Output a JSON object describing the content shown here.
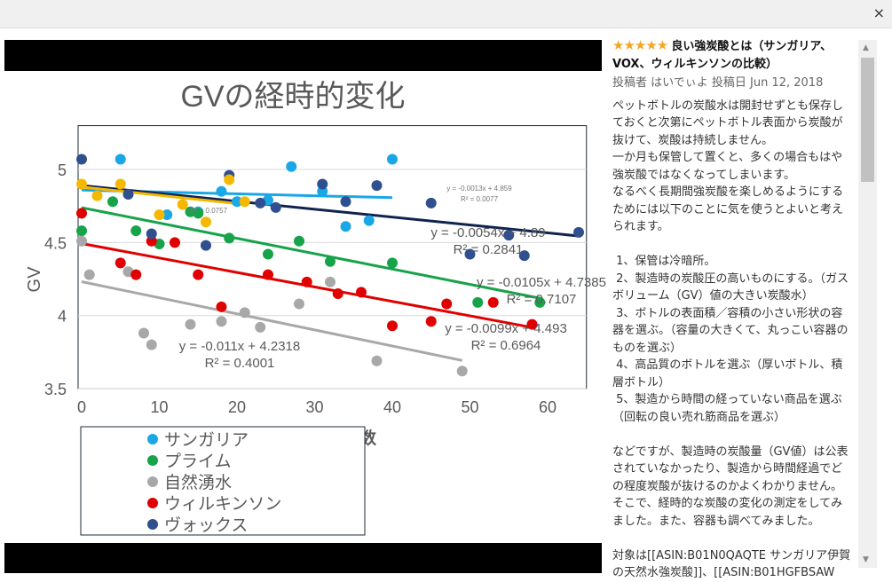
{
  "modal": {
    "close_icon": "close-icon",
    "close_label": "×"
  },
  "review": {
    "stars": 5,
    "stars_text": "★★★★★",
    "title": "良い強炭酸とは（サンガリア、VOX、ウィルキンソンの比較）",
    "byline": "投稿者 はいでぃよ 投稿日 Jun 12, 2018",
    "paragraphs": [
      "ペットボトルの炭酸水は開封せずとも保存しておくと次第にペットボトル表面から炭酸が抜けて、炭酸は持続しません。\n一か月も保管して置くと、多くの場合もはや強炭酸ではなくなってしまいます。\nなるべく長期間強炭酸を楽しめるようにするためには以下のことに気を使うとよいと考えられます。",
      " 1、保管は冷暗所。\n 2、製造時の炭酸圧の高いものにする。（ガスボリューム（GV）値の大きい炭酸水）\n 3、ボトルの表面積／容積の小さい形状の容器を選ぶ。（容量の大きくて、丸っこい容器のものを選ぶ）\n 4、高品質のボトルを選ぶ（厚いボトル、積層ボトル）\n 5、製造から時間の経っていない商品を選ぶ（回転の良い売れ筋商品を選ぶ）",
      "などですが、製造時の炭酸量（GV値）は公表されていなかったり、製造から時間経過でどの程度炭酸が抜けるのかよくわかりません。\nそこで、経時的な炭酸の変化の測定をしてみました。また、容器も調べてみました。",
      "対象は[[ASIN:B01N0QAQTE サンガリア伊賀の天然水強炭酸]]、[[ASIN:B01HGFBSAW"
    ]
  },
  "chart_data": {
    "type": "scatter",
    "title": "GVの経時的変化",
    "xlabel": "日数",
    "ylabel": "GV",
    "xlim": [
      0,
      65
    ],
    "ylim": [
      3.5,
      5.3
    ],
    "xticks": [
      "0",
      "10",
      "20",
      "30",
      "40",
      "50",
      "60"
    ],
    "yticks": [
      "3.5",
      "4",
      "4.5",
      "5"
    ],
    "grid": "horizontal",
    "legend_placement": "bottom-left",
    "series": [
      {
        "name": "サンガリア",
        "color": "#1aa7e6",
        "points": [
          [
            5,
            5.07
          ],
          [
            11,
            4.69
          ],
          [
            15,
            4.71
          ],
          [
            18,
            4.85
          ],
          [
            20,
            4.78
          ],
          [
            24,
            4.79
          ],
          [
            27,
            5.02
          ],
          [
            31,
            4.85
          ],
          [
            34,
            4.61
          ],
          [
            37,
            4.65
          ],
          [
            40,
            5.07
          ]
        ],
        "trend": {
          "slope": -0.0013,
          "intercept": 4.859,
          "x_end": 40,
          "label": "y = -0.0013x + 4.859",
          "r2": "R² = 0.0077"
        }
      },
      {
        "name": "プライム",
        "color": "#16a34a",
        "points": [
          [
            0,
            4.58
          ],
          [
            4,
            4.78
          ],
          [
            7,
            4.58
          ],
          [
            10,
            4.49
          ],
          [
            14,
            4.71
          ],
          [
            15,
            4.7
          ],
          [
            19,
            4.53
          ],
          [
            24,
            4.42
          ],
          [
            28,
            4.51
          ],
          [
            32,
            4.37
          ],
          [
            40,
            4.36
          ],
          [
            51,
            4.09
          ],
          [
            59,
            4.09
          ]
        ],
        "trend": {
          "slope": -0.0105,
          "intercept": 4.7385,
          "x_end": 59,
          "label": "y = -0.0105x + 4.7385",
          "r2": "R² = 0.7107"
        }
      },
      {
        "name": "自然湧水",
        "color": "#a8a8a8",
        "points": [
          [
            0,
            4.51
          ],
          [
            1,
            4.28
          ],
          [
            6,
            4.3
          ],
          [
            8,
            3.88
          ],
          [
            9,
            3.8
          ],
          [
            14,
            3.94
          ],
          [
            18,
            3.96
          ],
          [
            21,
            4.02
          ],
          [
            23,
            3.92
          ],
          [
            28,
            4.08
          ],
          [
            32,
            4.23
          ],
          [
            38,
            3.69
          ],
          [
            49,
            3.62
          ]
        ],
        "trend": {
          "slope": -0.011,
          "intercept": 4.2318,
          "x_end": 49,
          "label": "y = -0.011x + 4.2318",
          "r2": "R² = 0.4001"
        }
      },
      {
        "name": "ウィルキンソン",
        "color": "#e00000",
        "points": [
          [
            0,
            4.7
          ],
          [
            5,
            4.36
          ],
          [
            7,
            4.28
          ],
          [
            9,
            4.51
          ],
          [
            12,
            4.5
          ],
          [
            15,
            4.28
          ],
          [
            18,
            4.06
          ],
          [
            24,
            4.28
          ],
          [
            29,
            4.23
          ],
          [
            33,
            4.15
          ],
          [
            36,
            4.16
          ],
          [
            40,
            3.93
          ],
          [
            45,
            3.96
          ],
          [
            47,
            4.08
          ],
          [
            53,
            4.09
          ],
          [
            58,
            3.94
          ]
        ],
        "trend": {
          "slope": -0.0099,
          "intercept": 4.493,
          "x_end": 58,
          "label": "y = -0.0099x + 4.493",
          "r2": "R² = 0.6964"
        }
      },
      {
        "name": "ヴォックス",
        "color": "#2f4f8f",
        "points": [
          [
            0,
            5.07
          ],
          [
            6,
            4.83
          ],
          [
            9,
            4.56
          ],
          [
            16,
            4.48
          ],
          [
            19,
            4.96
          ],
          [
            23,
            4.77
          ],
          [
            25,
            4.74
          ],
          [
            31,
            4.9
          ],
          [
            34,
            4.78
          ],
          [
            38,
            4.89
          ],
          [
            45,
            4.77
          ],
          [
            50,
            4.42
          ],
          [
            55,
            4.55
          ],
          [
            57,
            4.41
          ],
          [
            64,
            4.57
          ]
        ],
        "trend": {
          "slope": -0.0054,
          "intercept": 4.89,
          "x_end": 64,
          "label": "y = -0.0054x + 4.89",
          "r2": "R² = 0.2841",
          "line_color": "#0f2350"
        }
      },
      {
        "color": "#f5b800",
        "points": [
          [
            0,
            4.9
          ],
          [
            2,
            4.82
          ],
          [
            5,
            4.9
          ],
          [
            10,
            4.69
          ],
          [
            13,
            4.76
          ],
          [
            16,
            4.64
          ],
          [
            19,
            4.93
          ],
          [
            21,
            4.78
          ]
        ],
        "trend": {
          "slope": -0.0057,
          "intercept": 4.88,
          "x_end": 21,
          "r2": "R² = 0.0757"
        }
      }
    ]
  }
}
